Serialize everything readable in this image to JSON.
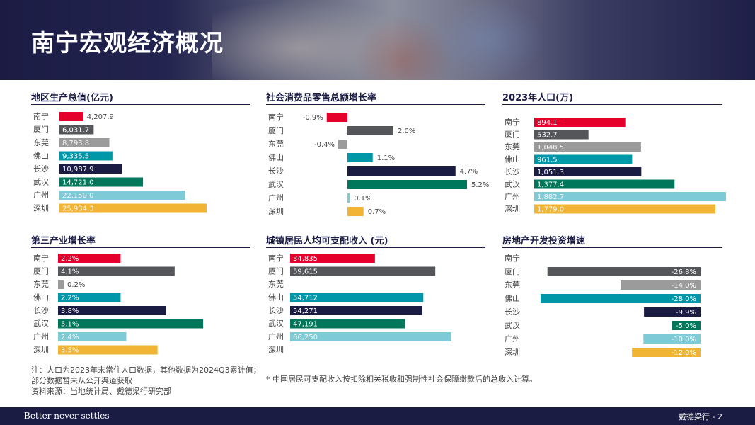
{
  "title": "南宁宏观经济概况",
  "colors": {
    "南宁": "#e4002b",
    "厦门": "#54565a",
    "东莞": "#9b9b9b",
    "佛山": "#0097a9",
    "长沙": "#1b1c44",
    "武汉": "#00775a",
    "广州": "#7fcad7",
    "深圳": "#f1b434"
  },
  "chart_data": [
    {
      "type": "bar",
      "title": "地区生产总值(亿元)",
      "categories": [
        "南宁",
        "厦门",
        "东莞",
        "佛山",
        "长沙",
        "武汉",
        "广州",
        "深圳"
      ],
      "values": [
        4207.9,
        6031.7,
        8793.8,
        9335.5,
        10987.9,
        14721.0,
        22150.0,
        25934.3
      ],
      "labels": [
        "4,207.9",
        "6,031.7",
        "8,793.8",
        "9,335.5",
        "10,987.9",
        "14,721.0",
        "22,150.0",
        "25,934.3"
      ]
    },
    {
      "type": "bar",
      "title": "社会消费品零售总额增长率",
      "categories": [
        "南宁",
        "厦门",
        "东莞",
        "佛山",
        "长沙",
        "武汉",
        "广州",
        "深圳"
      ],
      "values": [
        -0.9,
        2.0,
        -0.4,
        1.1,
        4.7,
        5.2,
        0.1,
        0.7
      ],
      "labels": [
        "-0.9%",
        "2.0%",
        "-0.4%",
        "1.1%",
        "4.7%",
        "5.2%",
        "0.1%",
        "0.7%"
      ]
    },
    {
      "type": "bar",
      "title": "2023年人口(万)",
      "categories": [
        "南宁",
        "厦门",
        "东莞",
        "佛山",
        "长沙",
        "武汉",
        "广州",
        "深圳"
      ],
      "values": [
        894.1,
        532.7,
        1048.5,
        961.5,
        1051.3,
        1377.4,
        1882.7,
        1779.0
      ],
      "labels": [
        "894.1",
        "532.7",
        "1,048.5",
        "961.5",
        "1,051.3",
        "1,377.4",
        "1,882.7",
        "1,779.0"
      ]
    },
    {
      "type": "bar",
      "title": "第三产业增长率",
      "categories": [
        "南宁",
        "厦门",
        "东莞",
        "佛山",
        "长沙",
        "武汉",
        "广州",
        "深圳"
      ],
      "values": [
        2.2,
        4.1,
        0.2,
        2.2,
        3.8,
        5.1,
        2.4,
        3.5
      ],
      "labels": [
        "2.2%",
        "4.1%",
        "0.2%",
        "2.2%",
        "3.8%",
        "5.1%",
        "2.4%",
        "3.5%"
      ]
    },
    {
      "type": "bar",
      "title": "城镇居民人均可支配收入 (元)",
      "categories": [
        "南宁",
        "厦门",
        "东莞",
        "佛山",
        "长沙",
        "武汉",
        "广州",
        "深圳"
      ],
      "values": [
        34835,
        59615,
        null,
        54712,
        54271,
        47191,
        66250,
        null
      ],
      "labels": [
        "34,835",
        "59,615",
        "",
        "54,712",
        "54,271",
        "47,191",
        "66,250",
        ""
      ]
    },
    {
      "type": "bar",
      "title": "房地产开发投资增速",
      "categories": [
        "南宁",
        "厦门",
        "东莞",
        "佛山",
        "长沙",
        "武汉",
        "广州",
        "深圳"
      ],
      "values": [
        null,
        -26.8,
        -14.0,
        -28.0,
        -9.9,
        -5.0,
        -10.0,
        -12.0
      ],
      "labels": [
        "",
        "-26.8%",
        "-14.0%",
        "-28.0%",
        "-9.9%",
        "-5.0%",
        "-10.0%",
        "-12.0%"
      ]
    }
  ],
  "notes": {
    "left_line1": "注：人口为2023年末常住人口数据，其他数据为2024Q3累计值；",
    "left_line2": "部分数据暂未从公开渠道获取",
    "left_line3": "资料来源：当地统计局、戴德梁行研究部",
    "middle": "* 中国居民可支配收入按扣除相关税收和强制性社会保障缴款后的总收入计算。"
  },
  "footer": {
    "slogan": "Better never settles",
    "page": "戴德梁行 - 2"
  }
}
